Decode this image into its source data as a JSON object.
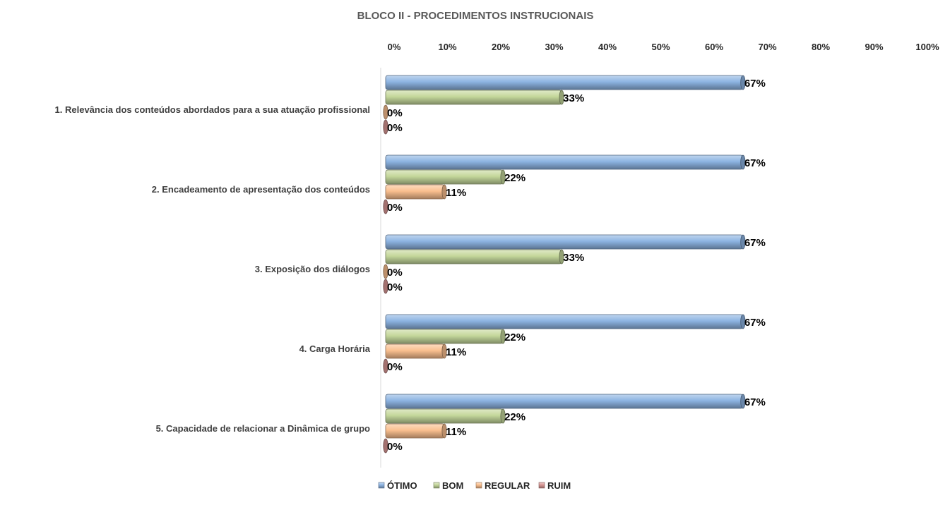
{
  "colors": {
    "otimo": "#8db4e2",
    "bom": "#c4d79b",
    "regular": "#fabf8f",
    "ruim": "#d99694"
  },
  "chart_data": {
    "type": "bar",
    "orientation": "horizontal",
    "title": "BLOCO II - PROCEDIMENTOS INSTRUCIONAIS",
    "xlabel": "",
    "ylabel": "",
    "xlim": [
      0,
      100
    ],
    "x_ticks": [
      "0%",
      "10%",
      "20%",
      "30%",
      "40%",
      "50%",
      "60%",
      "70%",
      "80%",
      "90%",
      "100%"
    ],
    "x_axis_position": "top",
    "grid": false,
    "legend_position": "bottom",
    "categories": [
      "1. Relevância dos conteúdos abordados para a sua atuação profissional",
      "2. Encadeamento de apresentação dos conteúdos",
      "3. Exposição dos diálogos",
      "4. Carga Horária",
      "5. Capacidade de relacionar a Dinâmica de grupo"
    ],
    "series": [
      {
        "name": "ÓTIMO",
        "color_key": "otimo",
        "values": [
          67,
          67,
          67,
          67,
          67
        ],
        "labels": [
          "67%",
          "67%",
          "67%",
          "67%",
          "67%"
        ]
      },
      {
        "name": "BOM",
        "color_key": "bom",
        "values": [
          33,
          22,
          33,
          22,
          22
        ],
        "labels": [
          "33%",
          "22%",
          "33%",
          "22%",
          "22%"
        ]
      },
      {
        "name": "REGULAR",
        "color_key": "regular",
        "values": [
          0,
          11,
          0,
          11,
          11
        ],
        "labels": [
          "0%",
          "11%",
          "0%",
          "11%",
          "11%"
        ]
      },
      {
        "name": "RUIM",
        "color_key": "ruim",
        "values": [
          0,
          0,
          0,
          0,
          0
        ],
        "labels": [
          "0%",
          "0%",
          "0%",
          "0%",
          "0%"
        ]
      }
    ]
  }
}
